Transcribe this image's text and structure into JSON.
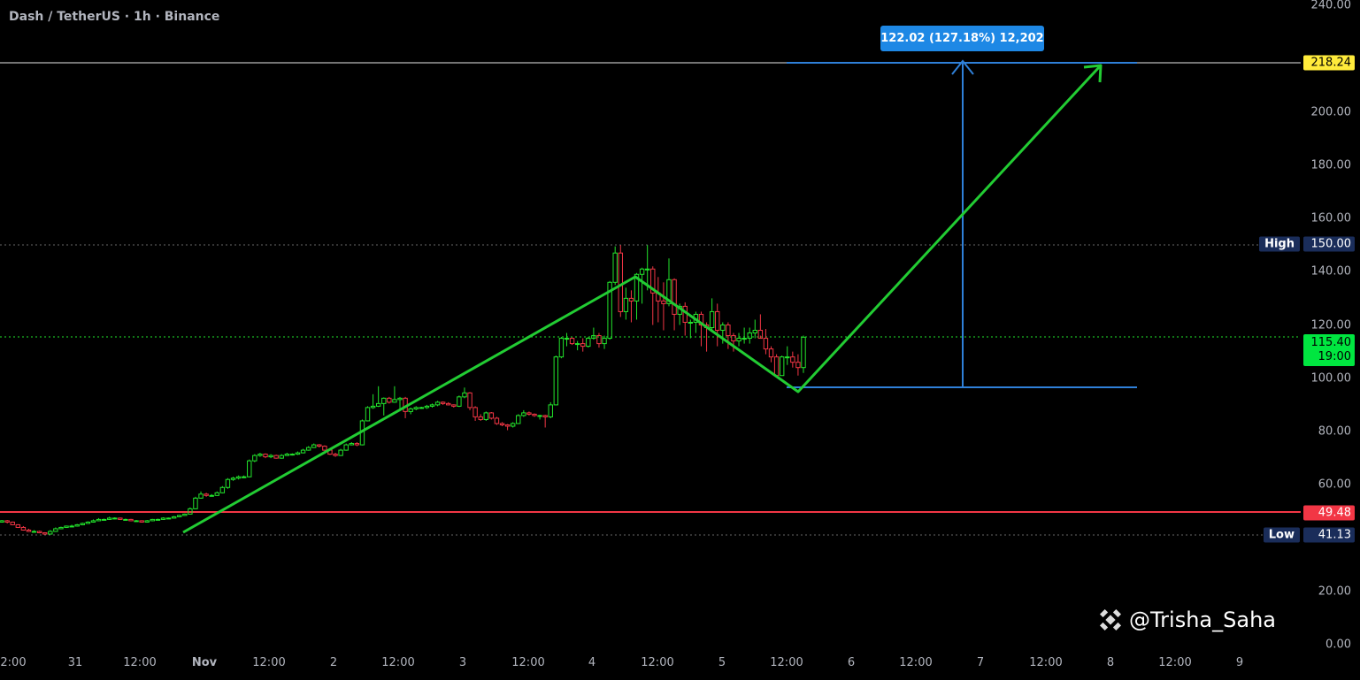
{
  "header": {
    "title": "Dash / TetherUS · 1h · Binance"
  },
  "measure": {
    "label": "122.02 (127.18%) 12,202"
  },
  "tags": {
    "target": "218.24",
    "target_color": "#ffeb3b",
    "high_label": "High",
    "high": "150.00",
    "current": "115.40",
    "countdown": "19:00",
    "current_color": "#00e640",
    "support": "49.48",
    "support_color": "#f23645",
    "low_label": "Low",
    "low": "41.13"
  },
  "watermark": {
    "text": "@Trisha_Saha",
    "icon": "binance-logo-icon"
  },
  "chart_data": {
    "type": "candlestick",
    "symbol": "Dash / TetherUS",
    "interval": "1h",
    "exchange": "Binance",
    "ylim": [
      0,
      240
    ],
    "y_ticks": [
      "240.00",
      "200.00",
      "180.00",
      "160.00",
      "140.00",
      "120.00",
      "100.00",
      "80.00",
      "60.00",
      "20.00",
      "0.00"
    ],
    "x_ticks": [
      "2:00",
      "31",
      "12:00",
      "Nov",
      "12:00",
      "2",
      "12:00",
      "3",
      "12:00",
      "4",
      "12:00",
      "5",
      "12:00",
      "6",
      "12:00",
      "7",
      "12:00",
      "8",
      "12:00",
      "9"
    ],
    "colors": {
      "up": "#22e52c",
      "down": "#f23645",
      "pattern": "#22cc33",
      "measure": "#2f80d8"
    },
    "horizontal_lines": {
      "target": 218.24,
      "high": 150.0,
      "current": 115.4,
      "support": 49.48,
      "low": 41.13
    },
    "ohlc": [
      [
        46.5,
        47,
        45.8,
        46
      ],
      [
        46,
        46.8,
        45.8,
        46.5
      ],
      [
        46.5,
        46.8,
        45.5,
        46
      ],
      [
        46,
        46.2,
        44.8,
        45
      ],
      [
        45,
        45.2,
        43.8,
        44
      ],
      [
        44,
        44.5,
        42.8,
        43
      ],
      [
        43,
        43.5,
        42.3,
        42.5
      ],
      [
        42.5,
        43,
        42,
        42.5
      ],
      [
        42.5,
        42.8,
        41.8,
        42
      ],
      [
        42,
        42.2,
        41.3,
        41.5
      ],
      [
        41.5,
        43,
        41.5,
        42.5
      ],
      [
        42.5,
        44,
        42.3,
        43.5
      ],
      [
        43.5,
        44.3,
        43.3,
        44
      ],
      [
        44,
        44.7,
        43.8,
        44.5
      ],
      [
        44.5,
        45,
        44.2,
        44.5
      ],
      [
        44.5,
        45.3,
        44.3,
        45
      ],
      [
        45,
        45.8,
        44.8,
        45.5
      ],
      [
        45.5,
        46.3,
        45.3,
        46
      ],
      [
        46,
        47,
        45.8,
        46.5
      ],
      [
        46.5,
        47.5,
        46.3,
        47
      ],
      [
        47,
        47.3,
        46.7,
        47
      ],
      [
        47,
        48,
        46.8,
        47.5
      ],
      [
        47.5,
        47.8,
        47,
        47.5
      ],
      [
        47.5,
        47.7,
        46.8,
        47
      ],
      [
        47,
        47.3,
        46.7,
        47
      ],
      [
        47,
        47.2,
        46.3,
        46.5
      ],
      [
        46.5,
        46.8,
        46.2,
        46.5
      ],
      [
        46.5,
        46.7,
        45.8,
        46
      ],
      [
        46,
        46.8,
        45.8,
        46.5
      ],
      [
        46.5,
        47.2,
        46.3,
        47
      ],
      [
        47,
        47.3,
        46.7,
        47
      ],
      [
        47,
        47.8,
        46.8,
        47.5
      ],
      [
        47.5,
        47.7,
        47.2,
        47.5
      ],
      [
        47.5,
        48.3,
        47.3,
        48
      ],
      [
        48,
        48.7,
        47.8,
        48.5
      ],
      [
        48.5,
        49.2,
        48.3,
        49
      ],
      [
        49,
        51.5,
        48.8,
        51
      ],
      [
        51,
        55.5,
        50.8,
        55
      ],
      [
        55,
        57.5,
        54.8,
        56.5
      ],
      [
        56.5,
        57,
        55.5,
        56
      ],
      [
        56,
        56.5,
        55.6,
        56
      ],
      [
        56,
        57.5,
        55.8,
        57
      ],
      [
        57,
        59.5,
        56.8,
        59
      ],
      [
        59,
        62.5,
        58.5,
        62
      ],
      [
        62,
        63,
        61.5,
        62.5
      ],
      [
        62.5,
        63.5,
        62,
        63
      ],
      [
        63,
        63.5,
        62.5,
        63
      ],
      [
        63,
        69.5,
        62.8,
        69
      ],
      [
        69,
        71.5,
        68.5,
        71
      ],
      [
        71,
        72,
        70.5,
        71.5
      ],
      [
        71.5,
        71.8,
        70,
        70.5
      ],
      [
        70.5,
        71.5,
        70,
        71
      ],
      [
        71,
        71.3,
        69.8,
        70
      ],
      [
        70,
        71.5,
        69.8,
        71
      ],
      [
        71,
        72,
        70.8,
        71.5
      ],
      [
        71.5,
        71.8,
        71,
        71.5
      ],
      [
        71.5,
        72.5,
        71.2,
        72
      ],
      [
        72,
        73.5,
        71.8,
        73
      ],
      [
        73,
        74.5,
        72.8,
        74
      ],
      [
        74,
        75.5,
        73.8,
        75
      ],
      [
        75,
        75.3,
        74,
        74.5
      ],
      [
        74.5,
        74.8,
        72.8,
        73
      ],
      [
        73,
        73.3,
        71.2,
        71.5
      ],
      [
        71.5,
        72,
        70.5,
        71
      ],
      [
        71,
        73.5,
        70.8,
        73
      ],
      [
        73,
        75.5,
        72.8,
        75
      ],
      [
        75,
        76,
        74.8,
        75.5
      ],
      [
        75.5,
        76,
        74.5,
        75
      ],
      [
        75,
        84.5,
        74.8,
        84
      ],
      [
        84,
        89.5,
        83.8,
        89
      ],
      [
        89,
        94,
        88.5,
        89.5
      ],
      [
        89.5,
        97,
        89.2,
        90.5
      ],
      [
        90.5,
        92.8,
        86,
        92.5
      ],
      [
        92.5,
        93,
        90.5,
        91
      ],
      [
        91,
        97,
        90.8,
        92
      ],
      [
        92,
        93,
        88,
        92.5
      ],
      [
        92.5,
        93,
        85,
        87.5
      ],
      [
        87.5,
        89,
        86.5,
        88.5
      ],
      [
        88.5,
        89.5,
        88,
        89
      ],
      [
        89,
        89.3,
        88.5,
        89
      ],
      [
        89,
        90,
        88.5,
        89.5
      ],
      [
        89.5,
        90.5,
        89,
        90
      ],
      [
        90,
        91.5,
        89.5,
        91
      ],
      [
        91,
        91.3,
        90,
        90.5
      ],
      [
        90.5,
        91,
        89.8,
        90
      ],
      [
        90,
        90.2,
        89,
        89.5
      ],
      [
        89.5,
        93.5,
        89.2,
        93
      ],
      [
        93,
        96.5,
        92.5,
        94.5
      ],
      [
        94.5,
        94.8,
        88,
        89
      ],
      [
        89,
        89.5,
        84,
        85.5
      ],
      [
        85.5,
        86.5,
        84,
        84.5
      ],
      [
        84.5,
        87.5,
        84,
        87
      ],
      [
        87,
        87.3,
        84.5,
        85
      ],
      [
        85,
        85.5,
        82.5,
        83
      ],
      [
        83,
        83.5,
        82,
        82.5
      ],
      [
        82.5,
        82.8,
        80.5,
        82
      ],
      [
        82,
        83.5,
        81.5,
        83
      ],
      [
        83,
        86.5,
        82.8,
        86
      ],
      [
        86,
        88,
        85.5,
        87
      ],
      [
        87,
        87.5,
        86,
        86.5
      ],
      [
        86.5,
        86.8,
        85.5,
        86
      ],
      [
        86,
        86.3,
        84.5,
        86
      ],
      [
        86,
        86.3,
        81.5,
        85.5
      ],
      [
        85.5,
        91,
        85,
        90
      ],
      [
        90,
        108.5,
        89.8,
        108
      ],
      [
        108,
        115.5,
        107.5,
        115
      ],
      [
        115,
        117,
        112,
        115
      ],
      [
        115,
        115.3,
        112.5,
        113
      ],
      [
        113,
        114,
        110.5,
        113
      ],
      [
        113,
        115,
        110,
        112
      ],
      [
        112,
        115.5,
        111.5,
        115
      ],
      [
        115,
        119,
        114.5,
        116
      ],
      [
        116,
        117,
        111.5,
        113
      ],
      [
        113,
        116,
        111,
        115
      ],
      [
        115,
        136.5,
        114.5,
        136
      ],
      [
        136,
        149.5,
        135,
        147
      ],
      [
        147,
        150,
        123,
        125
      ],
      [
        125,
        134,
        122,
        130
      ],
      [
        130,
        133,
        121,
        129
      ],
      [
        129,
        139.5,
        122,
        139
      ],
      [
        139,
        141.5,
        128,
        141
      ],
      [
        141,
        150,
        133,
        141
      ],
      [
        141,
        142,
        120,
        132
      ],
      [
        132,
        138,
        121,
        129
      ],
      [
        129,
        136,
        118,
        128
      ],
      [
        128,
        145,
        127,
        137
      ],
      [
        137,
        137.5,
        118,
        124
      ],
      [
        124,
        128,
        120,
        127
      ],
      [
        127,
        128.5,
        116,
        121
      ],
      [
        121,
        122,
        115,
        121
      ],
      [
        121,
        125,
        117,
        124
      ],
      [
        124,
        125,
        112,
        120
      ],
      [
        120,
        121,
        110,
        119
      ],
      [
        119,
        130,
        118,
        125
      ],
      [
        125,
        128,
        112,
        118
      ],
      [
        118,
        121,
        113,
        120
      ],
      [
        120,
        121,
        111,
        116
      ],
      [
        116,
        117,
        110,
        114
      ],
      [
        114,
        117,
        112,
        115
      ],
      [
        115,
        119,
        113,
        115
      ],
      [
        115,
        119,
        113,
        117
      ],
      [
        117,
        122,
        115,
        118
      ],
      [
        118,
        124,
        116,
        115
      ],
      [
        115,
        118.5,
        109,
        111
      ],
      [
        111,
        112,
        106,
        108
      ],
      [
        108,
        109,
        101,
        101
      ],
      [
        101,
        108.5,
        101,
        108
      ],
      [
        108,
        112,
        105,
        108
      ],
      [
        108,
        110,
        104,
        106
      ],
      [
        106,
        109,
        101,
        104
      ],
      [
        104,
        116,
        102,
        115.4
      ]
    ]
  }
}
